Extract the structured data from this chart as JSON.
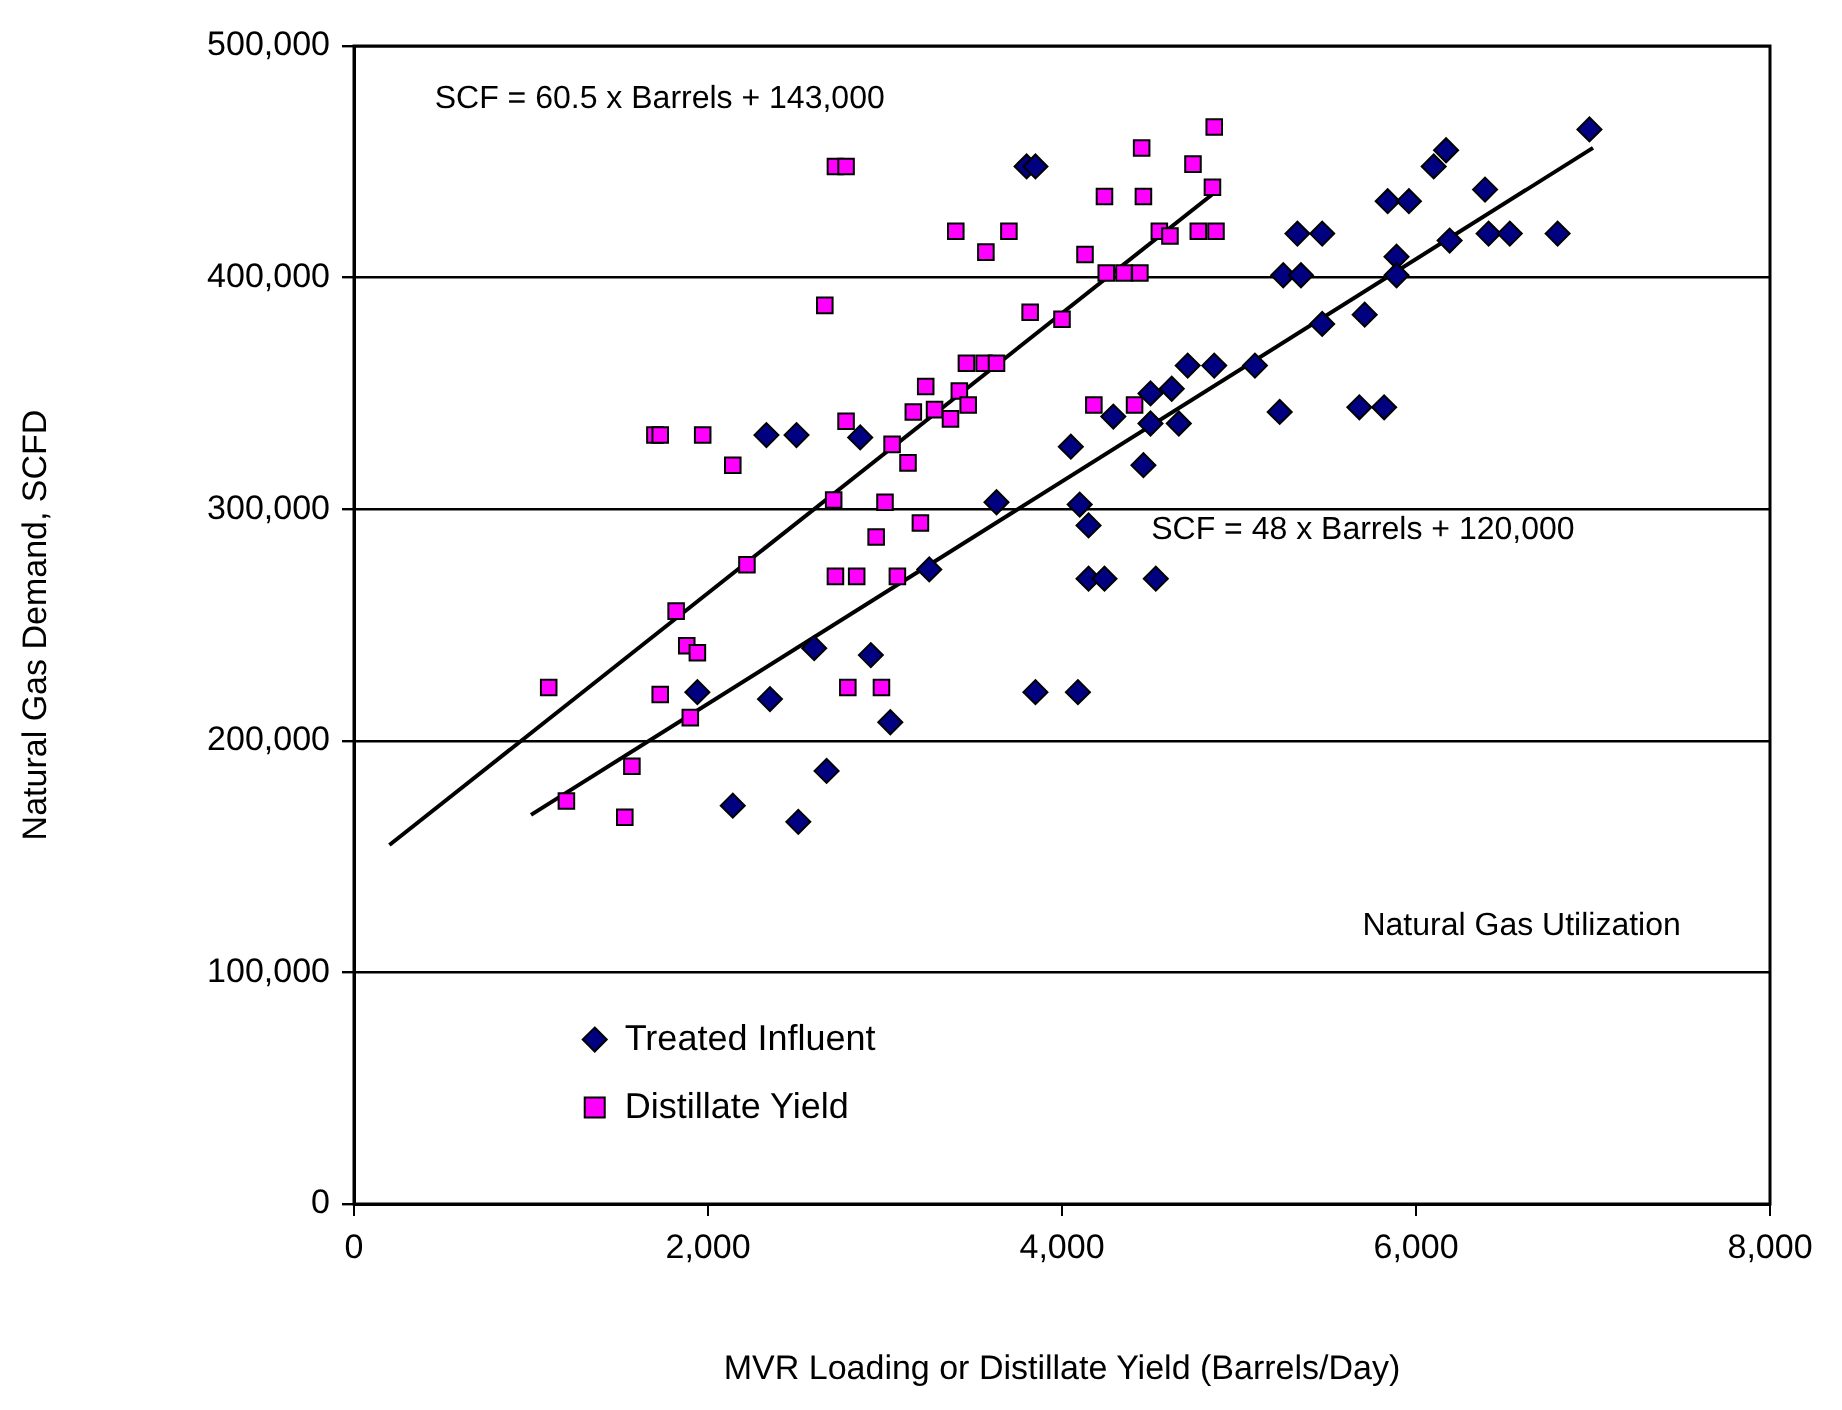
{
  "chart_data": {
    "type": "scatter",
    "xlabel": "MVR Loading or Distillate Yield (Barrels/Day)",
    "ylabel": "Natural Gas Demand, SCFD",
    "xlim": [
      0,
      8000
    ],
    "xticks": [
      {
        "value": 0,
        "label": "0"
      },
      {
        "value": 2000,
        "label": "2,000"
      },
      {
        "value": 4000,
        "label": "4,000"
      },
      {
        "value": 6000,
        "label": "6,000"
      },
      {
        "value": 8000,
        "label": "8,000"
      }
    ],
    "ylim": [
      0,
      500000
    ],
    "yticks": [
      {
        "value": 0,
        "label": "0"
      },
      {
        "value": 100000,
        "label": "100,000"
      },
      {
        "value": 200000,
        "label": "200,000"
      },
      {
        "value": 300000,
        "label": "300,000"
      },
      {
        "value": 400000,
        "label": "400,000"
      },
      {
        "value": 500000,
        "label": "500,000"
      }
    ],
    "grid": "y",
    "legend": "bottom left",
    "series": [
      {
        "name": "Treated Influent",
        "color": "#000080",
        "marker": "diamond",
        "x": [
          2330,
          2500,
          2860,
          3630,
          3250,
          4050,
          4100,
          4150,
          4150,
          4240,
          4530,
          4460,
          4290,
          4500,
          4500,
          4620,
          4660,
          4710,
          4860,
          5090,
          5230,
          5250,
          5350,
          5330,
          5470,
          5470,
          5710,
          5680,
          5820,
          5840,
          5960,
          5890,
          5890,
          6100,
          6170,
          6190,
          6390,
          6410,
          6530,
          6800,
          6980,
          3800,
          3850,
          1940,
          2350,
          2600,
          2670,
          2140,
          2510,
          2920,
          3030,
          3850,
          4090
        ],
        "values": [
          332000,
          332000,
          331000,
          303000,
          274000,
          327000,
          302000,
          293000,
          270000,
          270000,
          270000,
          319000,
          340000,
          350000,
          337000,
          352000,
          337000,
          362000,
          362000,
          362000,
          342000,
          401000,
          401000,
          419000,
          419000,
          380000,
          384000,
          344000,
          344000,
          433000,
          433000,
          409000,
          401000,
          448000,
          455000,
          416000,
          438000,
          419000,
          419000,
          419000,
          464000,
          448000,
          448000,
          221000,
          218000,
          240000,
          187000,
          172000,
          165000,
          237000,
          208000,
          221000,
          221000
        ]
      },
      {
        "name": "Distillate Yield",
        "color": "#ff00ff",
        "marker": "square",
        "x": [
          2720,
          2780,
          2660,
          1700,
          1730,
          1970,
          2140,
          2710,
          2220,
          2720,
          2840,
          3070,
          1820,
          1880,
          1940,
          1100,
          1730,
          1900,
          1570,
          1200,
          1530,
          3400,
          3570,
          3700,
          4130,
          3820,
          4000,
          4240,
          4460,
          4450,
          4740,
          4860,
          4850,
          4550,
          4610,
          4770,
          4870,
          4250,
          4350,
          4440,
          3460,
          3560,
          3630,
          3230,
          3420,
          3470,
          3160,
          3280,
          3370,
          4180,
          4410,
          2780,
          3040,
          3130,
          3000,
          3200,
          2950,
          2790,
          2980
        ],
        "values": [
          448000,
          448000,
          388000,
          332000,
          332000,
          332000,
          319000,
          304000,
          276000,
          271000,
          271000,
          271000,
          256000,
          241000,
          238000,
          223000,
          220000,
          210000,
          189000,
          174000,
          167000,
          420000,
          411000,
          420000,
          410000,
          385000,
          382000,
          435000,
          435000,
          456000,
          449000,
          465000,
          439000,
          420000,
          418000,
          420000,
          420000,
          402000,
          402000,
          402000,
          363000,
          363000,
          363000,
          353000,
          351000,
          345000,
          342000,
          343000,
          339000,
          345000,
          345000,
          338000,
          328000,
          320000,
          303000,
          294000,
          288000,
          223000,
          223000
        ]
      },
      {
        "type": "line",
        "color": "#000000",
        "x": [
          200,
          4850
        ],
        "values": [
          155000,
          436000
        ]
      },
      {
        "type": "line",
        "color": "#000000",
        "x": [
          1000,
          7000
        ],
        "values": [
          168000,
          456000
        ]
      }
    ],
    "annotations": [
      "SCF = 60.5 x Barrels + 143,000",
      "SCF = 48 x Barrels + 120,000",
      "Natural Gas Utilization"
    ]
  }
}
